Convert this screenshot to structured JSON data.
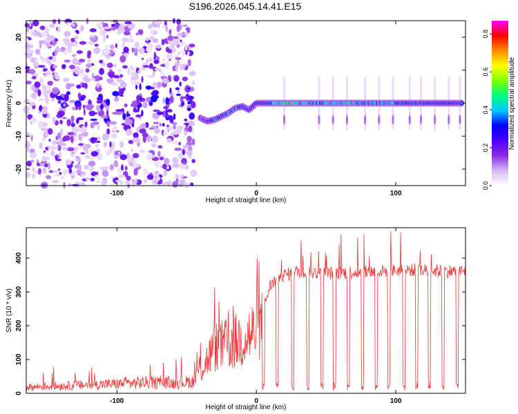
{
  "title": "S196.2026.045.14.41.E15",
  "chart_data": [
    {
      "type": "heatmap",
      "title": "S196.2026.045.14.41.E15",
      "xlabel": "Height of straight line (km)",
      "ylabel": "Frequency (Hz)",
      "xlim": [
        -165,
        150
      ],
      "ylim": [
        -25,
        25
      ],
      "x_ticks": [
        -100,
        0,
        100
      ],
      "y_ticks": [
        -20,
        -10,
        0,
        10,
        20
      ],
      "colorbar": {
        "label": "Normalized spectral amplitude",
        "range": [
          0,
          0.87
        ],
        "ticks": [
          "0.0",
          "0.2",
          "0.4",
          "0.6",
          "0.8"
        ],
        "tick_values": [
          0.0,
          0.2,
          0.4,
          0.6,
          0.8
        ],
        "colormap": [
          "#ffffff",
          "#d7b8f5",
          "#8a2be2",
          "#4b00ff",
          "#0000ff",
          "#00c8ff",
          "#00ff7f",
          "#7fff00",
          "#ffff00",
          "#ff8c00",
          "#ff0000",
          "#ff00ff"
        ]
      },
      "description_series": {
        "noise_region_x": [
          -165,
          -50
        ],
        "ridge_x": [
          -40,
          -35,
          -30,
          -25,
          -20,
          -15,
          -10,
          -5,
          0,
          10,
          20,
          40,
          60,
          80,
          100,
          120,
          140,
          148
        ],
        "ridge_freq": [
          -4.5,
          -5.5,
          -5,
          -4,
          -3,
          -1.5,
          -1,
          -2,
          0,
          0,
          0,
          0,
          0,
          0,
          0,
          0,
          0,
          0
        ],
        "ridge_amp": [
          0.25,
          0.3,
          0.55,
          0.45,
          0.55,
          0.6,
          0.45,
          0.35,
          0.4,
          0.55,
          0.75,
          0.6,
          0.7,
          0.6,
          0.6,
          0.5,
          0.45,
          0.35
        ],
        "pulse_x": [
          20,
          45,
          55,
          65,
          78,
          88,
          98,
          110,
          118,
          128,
          138,
          146
        ]
      }
    },
    {
      "type": "line",
      "xlabel": "Height of straight line (km)",
      "ylabel": "SNR (10 * v/v)",
      "xlim": [
        -165,
        150
      ],
      "ylim": [
        0,
        490
      ],
      "x_ticks": [
        -100,
        0,
        100
      ],
      "y_ticks": [
        0,
        100,
        200,
        300,
        400
      ],
      "color": "#ee3333",
      "series_summary": {
        "x": [
          -165,
          -140,
          -120,
          -100,
          -80,
          -60,
          -45,
          -38,
          -30,
          -20,
          -10,
          0,
          5,
          10,
          15,
          20,
          30,
          50,
          80,
          110,
          150
        ],
        "y": [
          18,
          22,
          25,
          28,
          32,
          30,
          35,
          100,
          170,
          180,
          200,
          230,
          250,
          320,
          340,
          350,
          360,
          355,
          360,
          365,
          360
        ],
        "dips_x": [
          5,
          15,
          26,
          37,
          47,
          56,
          66,
          76,
          86,
          95,
          106,
          115,
          124,
          134,
          144
        ],
        "spike_max": 480
      }
    }
  ]
}
